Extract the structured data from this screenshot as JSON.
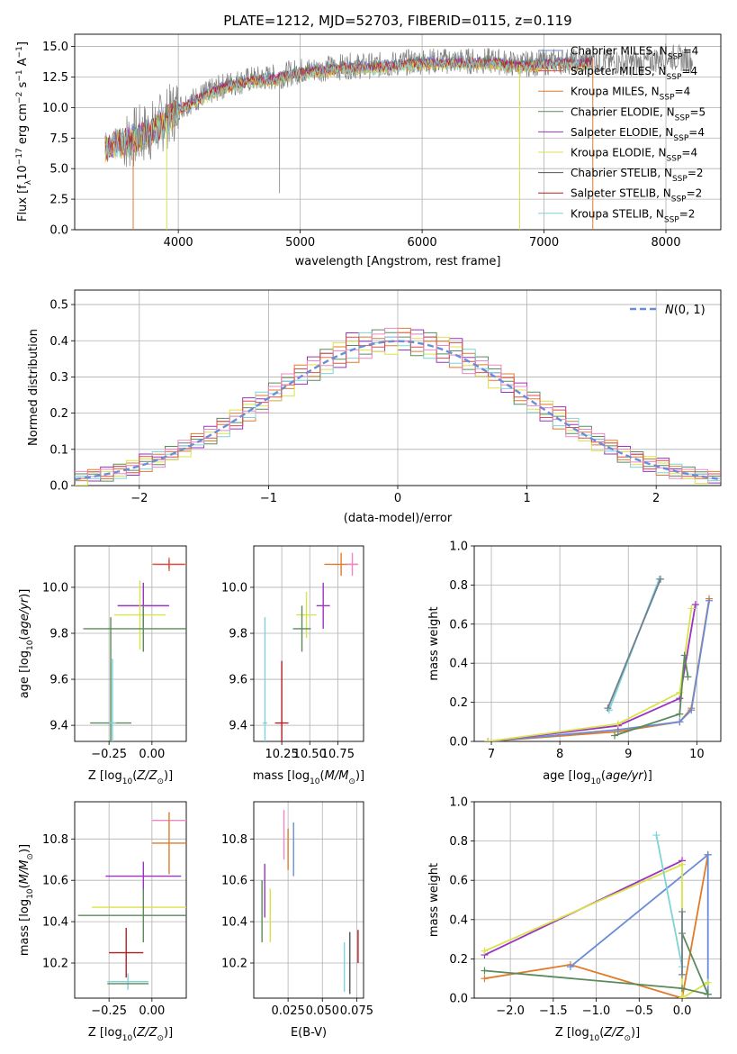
{
  "figure": {
    "title": "PLATE=1212, MJD=52703, FIBERID=0115, z=0.119"
  },
  "chart_data": [
    {
      "id": "spectrum",
      "type": "line",
      "title": "PLATE=1212, MJD=52703, FIBERID=0115, z=0.119",
      "xlabel": "wavelength [Angstrom, rest frame]",
      "ylabel": "Flux [f_λ 10^-17 erg cm^-2 s^-1 A^-1]",
      "xlim": [
        3150,
        8450
      ],
      "ylim": [
        0,
        16
      ],
      "xticks": [
        4000,
        5000,
        6000,
        7000,
        8000
      ],
      "yticks": [
        0.0,
        2.5,
        5.0,
        7.5,
        10.0,
        12.5,
        15.0
      ],
      "legend_position": "right",
      "series": [
        {
          "name": "Chabrier MILES, N_SSP=4",
          "color": "#6a8dd8"
        },
        {
          "name": "Salpeter MILES, N_SSP=4",
          "color": "#d94f4f"
        },
        {
          "name": "Kroupa MILES, N_SSP=4",
          "color": "#e07b2a"
        },
        {
          "name": "Chabrier ELODIE, N_SSP=5",
          "color": "#5b8a5b"
        },
        {
          "name": "Salpeter ELODIE, N_SSP=4",
          "color": "#9a32c2"
        },
        {
          "name": "Kroupa ELODIE, N_SSP=4",
          "color": "#d8e34a"
        },
        {
          "name": "Chabrier STELIB, N_SSP=2",
          "color": "#555555"
        },
        {
          "name": "Salpeter STELIB, N_SSP=2",
          "color": "#b22020"
        },
        {
          "name": "Kroupa STELIB, N_SSP=2",
          "color": "#7fd3d6"
        }
      ],
      "continuum": {
        "x": [
          3400,
          3600,
          3800,
          4000,
          4200,
          4400,
          4600,
          4800,
          5000,
          5200,
          5400,
          5600,
          5800,
          6000,
          6200,
          6400,
          6600,
          6800,
          7000,
          7200,
          7300,
          7400,
          7600,
          7800,
          8000,
          8200
        ],
        "y": [
          6.9,
          7.4,
          8.2,
          10.0,
          11.0,
          11.9,
          12.3,
          12.5,
          13.0,
          13.2,
          13.4,
          13.4,
          13.6,
          13.8,
          13.8,
          13.8,
          13.8,
          13.5,
          13.7,
          13.8,
          13.7,
          13.9,
          13.7,
          13.6,
          14.2,
          13.9
        ]
      },
      "model_range": [
        3400,
        7400
      ],
      "data_range": [
        3550,
        8220
      ],
      "dips": [
        {
          "x": 3630,
          "y": 0,
          "color": "#e07b2a"
        },
        {
          "x": 3905,
          "y": 0,
          "color": "#d8e34a"
        },
        {
          "x": 4830,
          "y": 3.0,
          "color": "#999999"
        },
        {
          "x": 6800,
          "y": 0,
          "color": "#d8e34a"
        },
        {
          "x": 7400,
          "y": 0,
          "color": "#e07b2a"
        }
      ]
    },
    {
      "id": "residuals",
      "type": "line",
      "xlabel": "(data-model)/error",
      "ylabel": "Normed distribution",
      "xlim": [
        -2.5,
        2.5
      ],
      "ylim": [
        0,
        0.54
      ],
      "xticks": [
        -2,
        -1,
        0,
        1,
        2
      ],
      "yticks": [
        0.0,
        0.1,
        0.2,
        0.3,
        0.4,
        0.5
      ],
      "legend_position": "top-right",
      "reference": {
        "name": "N(0,1)",
        "mu": 0,
        "sigma": 1,
        "color": "#6a8dd8"
      },
      "bin_width": 0.1,
      "histograms": [
        {
          "color": "#9a32c2",
          "offsets": [
            0.01,
            -0.02,
            0.03,
            0.02,
            -0.03,
            0.04,
            0.01,
            -0.02
          ]
        },
        {
          "color": "#e07b2a",
          "offsets": [
            -0.01,
            0.03,
            -0.02,
            0.01,
            0.02,
            -0.03,
            0.02,
            0.01
          ]
        },
        {
          "color": "#5b8a5b",
          "offsets": [
            0.02,
            0.01,
            -0.03,
            0.03,
            -0.01,
            0.01,
            -0.02,
            0.03
          ]
        },
        {
          "color": "#d8e34a",
          "offsets": [
            -0.03,
            0.02,
            0.01,
            -0.02,
            0.03,
            0.02,
            -0.01,
            -0.02
          ]
        },
        {
          "color": "#7fd3d6",
          "offsets": [
            0.01,
            -0.01,
            0.02,
            -0.03,
            0.01,
            -0.02,
            0.03,
            0.0
          ]
        },
        {
          "color": "#d94f4f",
          "offsets": [
            0.0,
            0.02,
            -0.01,
            0.02,
            -0.02,
            0.03,
            0.0,
            -0.01
          ]
        },
        {
          "color": "#ef87c4",
          "offsets": [
            0.03,
            0.0,
            0.02,
            -0.01,
            0.01,
            0.0,
            -0.03,
            0.02
          ]
        }
      ]
    },
    {
      "id": "age_vs_Z",
      "type": "scatter",
      "xlabel": "Z [log10(Z/Z_sun)]",
      "ylabel": "age [log10(age/yr)]",
      "xlim": [
        -0.45,
        0.2
      ],
      "ylim": [
        9.33,
        10.18
      ],
      "xticks": [
        -0.25,
        0.0
      ],
      "xticklabels": [
        "−0.25",
        "0.00"
      ],
      "yticks": [
        9.4,
        9.6,
        9.8,
        10.0
      ],
      "yticklabels": [
        "9.4",
        "9.6",
        "9.8",
        "10.0"
      ],
      "points": [
        {
          "x": 0.1,
          "y": 10.1,
          "xerr": 0.1,
          "yerr": 0.03,
          "color": "#e07b2a"
        },
        {
          "x": 0.1,
          "y": 10.1,
          "xerr": 0.09,
          "yerr": 0.02,
          "color": "#d94f4f"
        },
        {
          "x": -0.05,
          "y": 9.92,
          "xerr": 0.15,
          "yerr": 0.1,
          "color": "#9a32c2"
        },
        {
          "x": -0.07,
          "y": 9.88,
          "xerr": 0.15,
          "yerr": 0.15,
          "color": "#d8e34a"
        },
        {
          "x": -0.05,
          "y": 9.82,
          "xerr": 0.35,
          "yerr": 0.1,
          "color": "#5b8a5b"
        },
        {
          "x": -0.24,
          "y": 9.41,
          "xerr": 0.12,
          "yerr": 0.46,
          "color": "#5b8a5b"
        },
        {
          "x": -0.23,
          "y": 9.41,
          "xerr": 0.02,
          "yerr": 0.28,
          "color": "#7fd3d6"
        }
      ]
    },
    {
      "id": "age_vs_mass",
      "type": "scatter",
      "xlabel": "mass [log10(M/M_sun)]",
      "ylabel": "",
      "xlim": [
        10.0,
        10.98
      ],
      "ylim": [
        9.33,
        10.18
      ],
      "xticks": [
        10.25,
        10.5,
        10.75
      ],
      "xticklabels": [
        "10.25",
        "10.50",
        "10.75"
      ],
      "yticks": [
        9.4,
        9.6,
        9.8,
        10.0
      ],
      "yticklabels": [
        "9.4",
        "9.6",
        "9.8",
        "10.0"
      ],
      "points": [
        {
          "x": 10.78,
          "y": 10.1,
          "xerr": 0.15,
          "yerr": 0.05,
          "color": "#e07b2a"
        },
        {
          "x": 10.88,
          "y": 10.1,
          "xerr": 0.05,
          "yerr": 0.05,
          "color": "#ef87c4"
        },
        {
          "x": 10.62,
          "y": 9.92,
          "xerr": 0.06,
          "yerr": 0.1,
          "color": "#9a32c2"
        },
        {
          "x": 10.47,
          "y": 9.88,
          "xerr": 0.09,
          "yerr": 0.1,
          "color": "#d8e34a"
        },
        {
          "x": 10.43,
          "y": 9.82,
          "xerr": 0.08,
          "yerr": 0.1,
          "color": "#5b8a5b"
        },
        {
          "x": 10.1,
          "y": 9.41,
          "xerr": 0.02,
          "yerr": 0.46,
          "color": "#7fd3d6"
        },
        {
          "x": 10.25,
          "y": 9.41,
          "xerr": 0.06,
          "yerr": 0.27,
          "color": "#b22020"
        }
      ]
    },
    {
      "id": "weight_vs_age",
      "type": "line",
      "xlabel": "age [log10(age/yr)]",
      "ylabel": "mass weight",
      "xlim": [
        6.75,
        10.35
      ],
      "ylim": [
        0,
        1.0
      ],
      "xticks": [
        7,
        8,
        9,
        10
      ],
      "yticks": [
        0.0,
        0.2,
        0.4,
        0.6,
        0.8,
        1.0
      ],
      "series": [
        {
          "color": "#e07b2a",
          "x": [
            6.95,
            8.85,
            9.75,
            9.92,
            10.18
          ],
          "y": [
            0.0,
            0.05,
            0.1,
            0.17,
            0.73
          ]
        },
        {
          "color": "#6a8dd8",
          "x": [
            6.95,
            8.85,
            9.75,
            9.92,
            10.18
          ],
          "y": [
            0.0,
            0.06,
            0.1,
            0.16,
            0.72
          ]
        },
        {
          "color": "#9a32c2",
          "x": [
            6.95,
            8.85,
            9.75,
            9.98
          ],
          "y": [
            0.0,
            0.08,
            0.22,
            0.7
          ]
        },
        {
          "color": "#d8e34a",
          "x": [
            6.95,
            8.85,
            9.75,
            9.92
          ],
          "y": [
            0.0,
            0.09,
            0.25,
            0.68
          ]
        },
        {
          "color": "#5b8a5b",
          "x": [
            8.8,
            9.75,
            9.82,
            9.87
          ],
          "y": [
            0.03,
            0.14,
            0.44,
            0.33
          ]
        },
        {
          "color": "#7fd3d6",
          "x": [
            8.72,
            9.45
          ],
          "y": [
            0.16,
            0.83
          ]
        },
        {
          "color": "#708090",
          "x": [
            8.7,
            9.47
          ],
          "y": [
            0.17,
            0.83
          ]
        }
      ]
    },
    {
      "id": "mass_vs_Z",
      "type": "scatter",
      "xlabel": "Z [log10(Z/Z_sun)]",
      "ylabel": "mass [log10(M/M_sun)]",
      "xlim": [
        -0.45,
        0.2
      ],
      "ylim": [
        10.03,
        10.98
      ],
      "xticks": [
        -0.25,
        0.0
      ],
      "xticklabels": [
        "−0.25",
        "0.00"
      ],
      "yticks": [
        10.2,
        10.4,
        10.6,
        10.8
      ],
      "yticklabels": [
        "10.2",
        "10.4",
        "10.6",
        "10.8"
      ],
      "points": [
        {
          "x": 0.1,
          "y": 10.89,
          "xerr": 0.1,
          "yerr": 0.0,
          "color": "#ef87c4"
        },
        {
          "x": 0.1,
          "y": 10.78,
          "xerr": 0.1,
          "yerr": 0.15,
          "color": "#e07b2a"
        },
        {
          "x": -0.05,
          "y": 10.62,
          "xerr": 0.22,
          "yerr": 0.07,
          "color": "#9a32c2"
        },
        {
          "x": -0.05,
          "y": 10.47,
          "xerr": 0.3,
          "yerr": 0.0,
          "color": "#d8e34a"
        },
        {
          "x": -0.05,
          "y": 10.43,
          "xerr": 0.38,
          "yerr": 0.13,
          "color": "#5b8a5b"
        },
        {
          "x": -0.15,
          "y": 10.25,
          "xerr": 0.1,
          "yerr": 0.12,
          "color": "#b22020"
        },
        {
          "x": -0.14,
          "y": 10.11,
          "xerr": 0.12,
          "yerr": 0.04,
          "color": "#7fd3d6"
        },
        {
          "x": -0.14,
          "y": 10.1,
          "xerr": 0.12,
          "yerr": 0.0,
          "color": "#5b8a5b"
        }
      ]
    },
    {
      "id": "mass_vs_ebv",
      "type": "scatter",
      "xlabel": "E(B-V)",
      "ylabel": "",
      "xlim": [
        0.0,
        0.08
      ],
      "ylim": [
        10.03,
        10.98
      ],
      "xticks": [
        0.025,
        0.05,
        0.075
      ],
      "xticklabels": [
        "0.025",
        "0.050",
        "0.075"
      ],
      "yticks": [
        10.2,
        10.4,
        10.6,
        10.8
      ],
      "yticklabels": [
        "10.2",
        "10.4",
        "10.6",
        "10.8"
      ],
      "points": [
        {
          "x": 0.022,
          "y": 10.82,
          "yerr": 0.12,
          "color": "#ef87c4"
        },
        {
          "x": 0.025,
          "y": 10.75,
          "yerr": 0.1,
          "color": "#e07b2a"
        },
        {
          "x": 0.029,
          "y": 10.75,
          "yerr": 0.13,
          "color": "#6a8dd8"
        },
        {
          "x": 0.008,
          "y": 10.55,
          "yerr": 0.13,
          "color": "#9a32c2"
        },
        {
          "x": 0.006,
          "y": 10.45,
          "yerr": 0.15,
          "color": "#5b8a5b"
        },
        {
          "x": 0.012,
          "y": 10.43,
          "yerr": 0.13,
          "color": "#d8e34a"
        },
        {
          "x": 0.066,
          "y": 10.18,
          "yerr": 0.12,
          "color": "#7fd3d6"
        },
        {
          "x": 0.07,
          "y": 10.2,
          "yerr": 0.15,
          "color": "#555555"
        },
        {
          "x": 0.076,
          "y": 10.28,
          "yerr": 0.08,
          "color": "#b22020"
        }
      ]
    },
    {
      "id": "weight_vs_Z",
      "type": "line",
      "xlabel": "Z [log10(Z/Z_sun)]",
      "ylabel": "mass weight",
      "xlim": [
        -2.42,
        0.45
      ],
      "ylim": [
        0,
        1.0
      ],
      "xticks": [
        -2.0,
        -1.5,
        -1.0,
        -0.5,
        0.0
      ],
      "xticklabels": [
        "−2.0",
        "−1.5",
        "−1.0",
        "−0.5",
        "0.0"
      ],
      "yticks": [
        0.0,
        0.2,
        0.4,
        0.6,
        0.8,
        1.0
      ],
      "series": [
        {
          "color": "#e07b2a",
          "x": [
            -2.3,
            -1.3,
            0.0,
            0.3,
            0.3
          ],
          "y": [
            0.1,
            0.17,
            0.0,
            0.73,
            0.73
          ]
        },
        {
          "color": "#6a8dd8",
          "x": [
            -1.3,
            0.3,
            0.3
          ],
          "y": [
            0.16,
            0.73,
            0.02
          ]
        },
        {
          "color": "#9a32c2",
          "x": [
            -2.3,
            0.0
          ],
          "y": [
            0.22,
            0.7
          ]
        },
        {
          "color": "#d8e34a",
          "x": [
            -2.3,
            0.0,
            0.0,
            0.3
          ],
          "y": [
            0.24,
            0.68,
            0.0,
            0.08
          ]
        },
        {
          "color": "#5b8a5b",
          "x": [
            -2.3,
            0.0,
            0.3
          ],
          "y": [
            0.14,
            0.05,
            0.02
          ]
        },
        {
          "color": "#5b8a5b",
          "x": [
            0.0,
            0.3
          ],
          "y": [
            0.33,
            0.02
          ]
        },
        {
          "color": "#7fd3d6",
          "x": [
            -0.3,
            0.0
          ],
          "y": [
            0.83,
            0.16
          ]
        },
        {
          "color": "#708090",
          "x": [
            0.0,
            0.0
          ],
          "y": [
            0.44,
            0.12
          ]
        }
      ]
    }
  ]
}
